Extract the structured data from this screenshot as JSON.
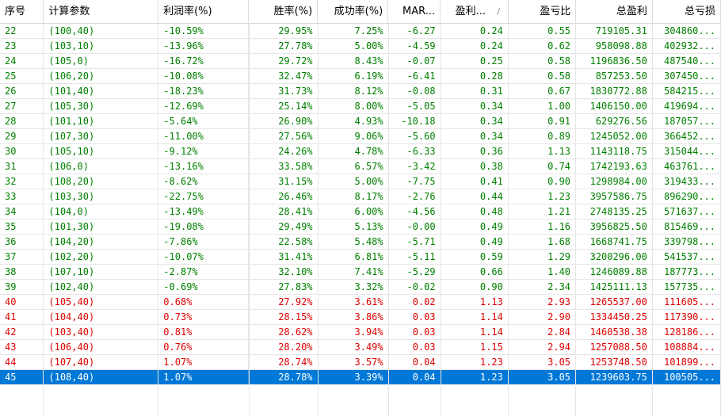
{
  "columns": [
    {
      "label": "序号",
      "align": "left"
    },
    {
      "label": "计算参数",
      "align": "left"
    },
    {
      "label": "利润率(%)",
      "align": "left"
    },
    {
      "label": "胜率(%)",
      "align": "right"
    },
    {
      "label": "成功率(%)",
      "align": "right"
    },
    {
      "label": "MAR...",
      "align": "right"
    },
    {
      "label": "盈利...",
      "align": "right",
      "sort_indicator": "/"
    },
    {
      "label": "盈亏比",
      "align": "right"
    },
    {
      "label": "总盈利",
      "align": "right"
    },
    {
      "label": "总亏损",
      "align": "right"
    }
  ],
  "colors": {
    "positive": "#e00000",
    "negative": "#008000",
    "selected_bg": "#0078d7"
  },
  "selected_row_id": "45",
  "rows": [
    {
      "id": "22",
      "param": "(100,40)",
      "profit_rate": "-10.59%",
      "win_rate": "29.95%",
      "success_rate": "7.25%",
      "mar": "-6.27",
      "profit": "0.24",
      "pl_ratio": "0.55",
      "total_profit": "719105.31",
      "total_loss": "304860..."
    },
    {
      "id": "23",
      "param": "(103,10)",
      "profit_rate": "-13.96%",
      "win_rate": "27.78%",
      "success_rate": "5.00%",
      "mar": "-4.59",
      "profit": "0.24",
      "pl_ratio": "0.62",
      "total_profit": "958098.88",
      "total_loss": "402932..."
    },
    {
      "id": "24",
      "param": "(105,0)",
      "profit_rate": "-16.72%",
      "win_rate": "29.72%",
      "success_rate": "8.43%",
      "mar": "-0.07",
      "profit": "0.25",
      "pl_ratio": "0.58",
      "total_profit": "1196836.50",
      "total_loss": "487540..."
    },
    {
      "id": "25",
      "param": "(106,20)",
      "profit_rate": "-10.08%",
      "win_rate": "32.47%",
      "success_rate": "6.19%",
      "mar": "-6.41",
      "profit": "0.28",
      "pl_ratio": "0.58",
      "total_profit": "857253.50",
      "total_loss": "307450..."
    },
    {
      "id": "26",
      "param": "(101,40)",
      "profit_rate": "-18.23%",
      "win_rate": "31.73%",
      "success_rate": "8.12%",
      "mar": "-0.08",
      "profit": "0.31",
      "pl_ratio": "0.67",
      "total_profit": "1830772.88",
      "total_loss": "584215..."
    },
    {
      "id": "27",
      "param": "(105,30)",
      "profit_rate": "-12.69%",
      "win_rate": "25.14%",
      "success_rate": "8.00%",
      "mar": "-5.05",
      "profit": "0.34",
      "pl_ratio": "1.00",
      "total_profit": "1406150.00",
      "total_loss": "419694..."
    },
    {
      "id": "28",
      "param": "(101,10)",
      "profit_rate": "-5.64%",
      "win_rate": "26.90%",
      "success_rate": "4.93%",
      "mar": "-10.18",
      "profit": "0.34",
      "pl_ratio": "0.91",
      "total_profit": "629276.56",
      "total_loss": "187057..."
    },
    {
      "id": "29",
      "param": "(107,30)",
      "profit_rate": "-11.00%",
      "win_rate": "27.56%",
      "success_rate": "9.06%",
      "mar": "-5.60",
      "profit": "0.34",
      "pl_ratio": "0.89",
      "total_profit": "1245052.00",
      "total_loss": "366452..."
    },
    {
      "id": "30",
      "param": "(105,10)",
      "profit_rate": "-9.12%",
      "win_rate": "24.26%",
      "success_rate": "4.78%",
      "mar": "-6.33",
      "profit": "0.36",
      "pl_ratio": "1.13",
      "total_profit": "1143118.75",
      "total_loss": "315044..."
    },
    {
      "id": "31",
      "param": "(106,0)",
      "profit_rate": "-13.16%",
      "win_rate": "33.58%",
      "success_rate": "6.57%",
      "mar": "-3.42",
      "profit": "0.38",
      "pl_ratio": "0.74",
      "total_profit": "1742193.63",
      "total_loss": "463761..."
    },
    {
      "id": "32",
      "param": "(108,20)",
      "profit_rate": "-8.62%",
      "win_rate": "31.15%",
      "success_rate": "5.00%",
      "mar": "-7.75",
      "profit": "0.41",
      "pl_ratio": "0.90",
      "total_profit": "1298984.00",
      "total_loss": "319433..."
    },
    {
      "id": "33",
      "param": "(103,30)",
      "profit_rate": "-22.75%",
      "win_rate": "26.46%",
      "success_rate": "8.17%",
      "mar": "-2.76",
      "profit": "0.44",
      "pl_ratio": "1.23",
      "total_profit": "3957586.75",
      "total_loss": "896290..."
    },
    {
      "id": "34",
      "param": "(104,0)",
      "profit_rate": "-13.49%",
      "win_rate": "28.41%",
      "success_rate": "6.00%",
      "mar": "-4.56",
      "profit": "0.48",
      "pl_ratio": "1.21",
      "total_profit": "2748135.25",
      "total_loss": "571637..."
    },
    {
      "id": "35",
      "param": "(101,30)",
      "profit_rate": "-19.08%",
      "win_rate": "29.49%",
      "success_rate": "5.13%",
      "mar": "-0.00",
      "profit": "0.49",
      "pl_ratio": "1.16",
      "total_profit": "3956825.50",
      "total_loss": "815469..."
    },
    {
      "id": "36",
      "param": "(104,20)",
      "profit_rate": "-7.86%",
      "win_rate": "22.58%",
      "success_rate": "5.48%",
      "mar": "-5.71",
      "profit": "0.49",
      "pl_ratio": "1.68",
      "total_profit": "1668741.75",
      "total_loss": "339798..."
    },
    {
      "id": "37",
      "param": "(102,20)",
      "profit_rate": "-10.07%",
      "win_rate": "31.41%",
      "success_rate": "6.81%",
      "mar": "-5.11",
      "profit": "0.59",
      "pl_ratio": "1.29",
      "total_profit": "3200296.00",
      "total_loss": "541537..."
    },
    {
      "id": "38",
      "param": "(107,10)",
      "profit_rate": "-2.87%",
      "win_rate": "32.10%",
      "success_rate": "7.41%",
      "mar": "-5.29",
      "profit": "0.66",
      "pl_ratio": "1.40",
      "total_profit": "1246089.88",
      "total_loss": "187773..."
    },
    {
      "id": "39",
      "param": "(102,40)",
      "profit_rate": "-0.69%",
      "win_rate": "27.83%",
      "success_rate": "3.32%",
      "mar": "-0.02",
      "profit": "0.90",
      "pl_ratio": "2.34",
      "total_profit": "1425111.13",
      "total_loss": "157735..."
    },
    {
      "id": "40",
      "param": "(105,40)",
      "profit_rate": "0.68%",
      "win_rate": "27.92%",
      "success_rate": "3.61%",
      "mar": "0.02",
      "profit": "1.13",
      "pl_ratio": "2.93",
      "total_profit": "1265537.00",
      "total_loss": "111605..."
    },
    {
      "id": "41",
      "param": "(104,40)",
      "profit_rate": "0.73%",
      "win_rate": "28.15%",
      "success_rate": "3.86%",
      "mar": "0.03",
      "profit": "1.14",
      "pl_ratio": "2.90",
      "total_profit": "1334450.25",
      "total_loss": "117390..."
    },
    {
      "id": "42",
      "param": "(103,40)",
      "profit_rate": "0.81%",
      "win_rate": "28.62%",
      "success_rate": "3.94%",
      "mar": "0.03",
      "profit": "1.14",
      "pl_ratio": "2.84",
      "total_profit": "1460538.38",
      "total_loss": "128186..."
    },
    {
      "id": "43",
      "param": "(106,40)",
      "profit_rate": "0.76%",
      "win_rate": "28.20%",
      "success_rate": "3.49%",
      "mar": "0.03",
      "profit": "1.15",
      "pl_ratio": "2.94",
      "total_profit": "1257088.50",
      "total_loss": "108884..."
    },
    {
      "id": "44",
      "param": "(107,40)",
      "profit_rate": "1.07%",
      "win_rate": "28.74%",
      "success_rate": "3.57%",
      "mar": "0.04",
      "profit": "1.23",
      "pl_ratio": "3.05",
      "total_profit": "1253748.50",
      "total_loss": "101899..."
    },
    {
      "id": "45",
      "param": "(108,40)",
      "profit_rate": "1.07%",
      "win_rate": "28.78%",
      "success_rate": "3.39%",
      "mar": "0.04",
      "profit": "1.23",
      "pl_ratio": "3.05",
      "total_profit": "1239603.75",
      "total_loss": "100505..."
    }
  ]
}
